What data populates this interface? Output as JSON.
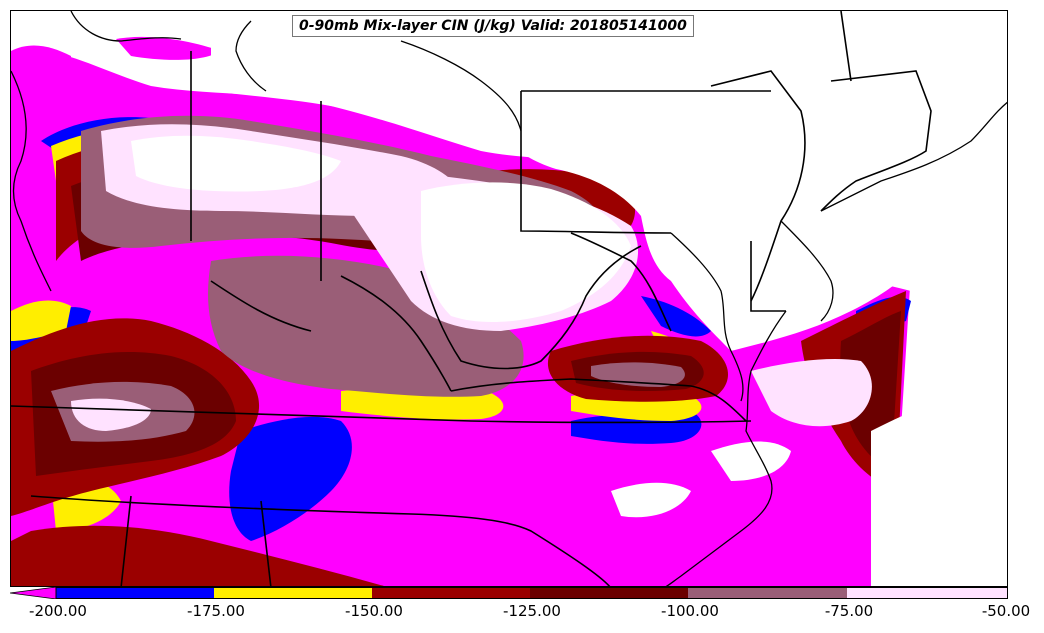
{
  "title": "0-90mb Mix-layer CIN (J/kg) Valid: 201805141000",
  "colors": {
    "lt_-200": "#ff00ff",
    "-200_-175": "#0000ff",
    "-175_-150": "#ffee00",
    "-150_-125": "#9b0000",
    "-125_-100": "#6b0000",
    "-100_-75": "#9a5e77",
    "-75_-50": "#ffe2ff",
    "background": "#ffffff",
    "borders": "#000000"
  },
  "colorbar": {
    "bins": [
      {
        "range": "-200 to -175",
        "color": "#0000ff"
      },
      {
        "range": "-175 to -150",
        "color": "#ffee00"
      },
      {
        "range": "-150 to -125",
        "color": "#9b0000"
      },
      {
        "range": "-125 to -100",
        "color": "#6b0000"
      },
      {
        "range": "-100 to -75",
        "color": "#9a5e77"
      },
      {
        "range": "-75 to -50",
        "color": "#ffe2ff"
      }
    ],
    "under_color": "#ff00ff",
    "tick_labels": [
      "-200.00",
      "-175.00",
      "-150.00",
      "-125.00",
      "-100.00",
      "-75.00",
      "-50.00"
    ]
  }
}
